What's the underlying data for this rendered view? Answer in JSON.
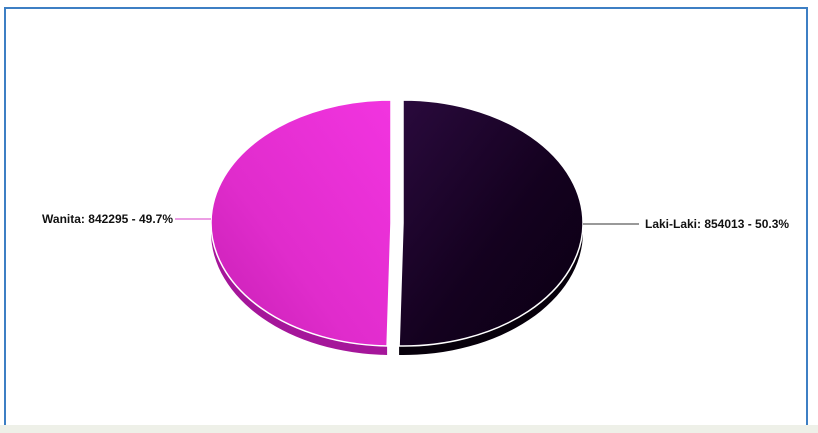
{
  "chart_data": {
    "type": "pie",
    "title": "",
    "slices": [
      {
        "label": "Laki-Laki",
        "value": 854013,
        "percent": 50.3,
        "color": "#14011f",
        "text": "Laki-Laki: 854013 - 50.3%"
      },
      {
        "label": "Wanita",
        "value": 842295,
        "percent": 49.7,
        "color": "#ec2fd6",
        "text": "Wanita: 842295 - 49.7%"
      }
    ],
    "legend": "none",
    "style": "3d-exploded"
  },
  "colors": {
    "frame_border": "#3d7fc4",
    "laki_dark": "#14011f",
    "wanita_pink": "#ec2fd6"
  }
}
